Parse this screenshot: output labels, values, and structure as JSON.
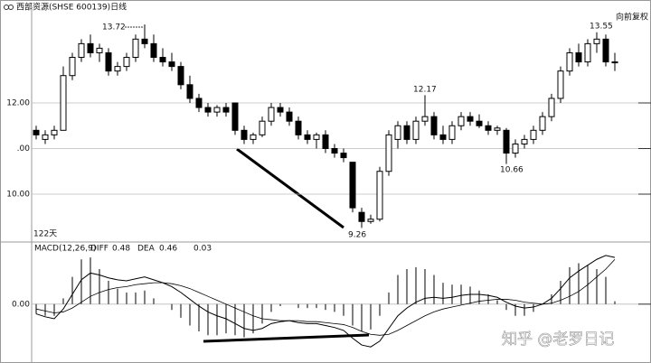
{
  "chart_data": [
    {
      "type": "candlestick",
      "title": "西部资源(SHSE 600139)日线",
      "subtitle": "向前复权",
      "period_label": "122天",
      "color": "#000000",
      "ylim": [
        8.95,
        14.06
      ],
      "yticks": [
        {
          "value": 11,
          "label": ".00"
        },
        {
          "value": 12,
          "label": "12.00"
        },
        {
          "value": 10,
          "label": "10.00"
        }
      ],
      "annotations": [
        "13.72",
        "13.55",
        "12.17",
        "10.66",
        "9.26"
      ],
      "open": [
        11.4,
        11.2,
        11.3,
        11.4,
        12.6,
        13.0,
        13.3,
        13.1,
        13.1,
        12.7,
        12.8,
        13.0,
        13.4,
        13.3,
        13.0,
        12.9,
        12.8,
        12.4,
        12.1,
        11.9,
        11.8,
        11.9,
        12.0,
        11.4,
        11.2,
        11.3,
        11.6,
        11.9,
        11.8,
        11.6,
        11.3,
        11.2,
        11.3,
        11.0,
        10.9,
        10.7,
        9.6,
        9.4,
        9.45,
        10.5,
        11.2,
        11.5,
        11.2,
        11.6,
        11.7,
        11.3,
        11.2,
        11.5,
        11.7,
        11.6,
        11.5,
        11.4,
        11.4,
        10.9,
        11.1,
        11.2,
        11.4,
        11.7,
        12.1,
        12.7,
        13.1,
        12.9,
        13.3,
        13.4,
        12.9
      ],
      "high": [
        11.5,
        11.4,
        11.5,
        12.8,
        13.1,
        13.4,
        13.5,
        13.3,
        13.2,
        12.9,
        13.1,
        13.5,
        13.72,
        13.5,
        13.2,
        13.1,
        12.9,
        12.6,
        12.2,
        12.0,
        11.95,
        12.0,
        12.0,
        11.5,
        11.35,
        11.7,
        12.0,
        12.0,
        11.9,
        11.7,
        11.4,
        11.35,
        11.4,
        11.1,
        11.0,
        10.7,
        9.7,
        9.55,
        10.6,
        11.4,
        11.6,
        11.6,
        11.7,
        12.17,
        11.8,
        11.5,
        11.6,
        11.8,
        11.8,
        11.75,
        11.6,
        11.5,
        11.45,
        11.2,
        11.3,
        11.5,
        11.8,
        12.2,
        12.8,
        13.2,
        13.3,
        13.4,
        13.55,
        13.5,
        13.1
      ],
      "low": [
        11.2,
        11.1,
        11.2,
        11.4,
        12.5,
        12.9,
        13.0,
        12.9,
        12.6,
        12.6,
        12.7,
        12.9,
        13.2,
        12.9,
        12.8,
        12.7,
        12.3,
        12.0,
        11.8,
        11.7,
        11.7,
        11.7,
        11.3,
        11.1,
        11.1,
        11.25,
        11.5,
        11.7,
        11.5,
        11.2,
        11.1,
        11.0,
        10.9,
        10.8,
        10.7,
        9.6,
        9.26,
        9.35,
        9.4,
        10.4,
        11.0,
        11.1,
        11.1,
        11.5,
        11.2,
        11.1,
        11.1,
        11.4,
        11.5,
        11.45,
        11.3,
        11.3,
        10.66,
        10.8,
        11.0,
        11.1,
        11.3,
        11.6,
        12.0,
        12.6,
        12.8,
        12.8,
        13.1,
        12.8,
        12.7
      ],
      "close": [
        11.3,
        11.3,
        11.4,
        12.6,
        13.0,
        13.3,
        13.1,
        13.2,
        12.7,
        12.8,
        13.0,
        13.4,
        13.3,
        13.0,
        12.9,
        12.8,
        12.4,
        12.1,
        11.9,
        11.8,
        11.9,
        11.8,
        11.4,
        11.2,
        11.3,
        11.6,
        11.9,
        11.8,
        11.6,
        11.3,
        11.2,
        11.3,
        11.0,
        10.9,
        10.8,
        9.7,
        9.4,
        9.45,
        10.5,
        11.3,
        11.5,
        11.2,
        11.6,
        11.7,
        11.3,
        11.2,
        11.5,
        11.7,
        11.6,
        11.5,
        11.4,
        11.45,
        10.9,
        11.1,
        11.2,
        11.4,
        11.7,
        12.1,
        12.7,
        13.1,
        12.9,
        13.3,
        13.4,
        12.9,
        12.9
      ]
    },
    {
      "type": "macd",
      "title": "MACD(12,26,9)",
      "ylim": [
        -0.54,
        0.62
      ],
      "yticks": [
        {
          "value": 0,
          "label": "0.00"
        }
      ],
      "series": [
        {
          "name": "DIFF",
          "color": "#000000",
          "values": [
            -0.1,
            -0.13,
            -0.15,
            -0.05,
            0.1,
            0.25,
            0.32,
            0.3,
            0.27,
            0.25,
            0.24,
            0.26,
            0.28,
            0.25,
            0.22,
            0.18,
            0.12,
            0.05,
            -0.02,
            -0.08,
            -0.12,
            -0.15,
            -0.2,
            -0.25,
            -0.27,
            -0.25,
            -0.2,
            -0.18,
            -0.17,
            -0.19,
            -0.2,
            -0.2,
            -0.22,
            -0.24,
            -0.27,
            -0.35,
            -0.42,
            -0.44,
            -0.38,
            -0.25,
            -0.12,
            -0.04,
            0.02,
            0.06,
            0.07,
            0.06,
            0.07,
            0.09,
            0.1,
            0.1,
            0.09,
            0.07,
            0.02,
            -0.02,
            -0.04,
            -0.03,
            0.0,
            0.06,
            0.16,
            0.27,
            0.34,
            0.4,
            0.46,
            0.5,
            0.48
          ]
        },
        {
          "name": "DEA",
          "color": "#000000",
          "values": [
            -0.05,
            -0.07,
            -0.09,
            -0.08,
            -0.04,
            0.02,
            0.08,
            0.12,
            0.15,
            0.17,
            0.18,
            0.2,
            0.21,
            0.22,
            0.22,
            0.21,
            0.19,
            0.16,
            0.12,
            0.08,
            0.04,
            0.0,
            -0.04,
            -0.08,
            -0.12,
            -0.15,
            -0.16,
            -0.17,
            -0.17,
            -0.17,
            -0.18,
            -0.18,
            -0.19,
            -0.2,
            -0.21,
            -0.24,
            -0.28,
            -0.31,
            -0.32,
            -0.31,
            -0.27,
            -0.22,
            -0.17,
            -0.12,
            -0.08,
            -0.05,
            -0.03,
            -0.01,
            0.01,
            0.03,
            0.04,
            0.05,
            0.05,
            0.04,
            0.02,
            0.01,
            0.0,
            0.01,
            0.04,
            0.08,
            0.13,
            0.2,
            0.28,
            0.36,
            0.46
          ]
        },
        {
          "color": "#000000",
          "values": [
            -0.1,
            -0.12,
            -0.12,
            0.06,
            0.28,
            0.46,
            0.48,
            0.36,
            0.24,
            0.16,
            0.12,
            0.12,
            0.14,
            0.06,
            0.0,
            -0.06,
            -0.14,
            -0.22,
            -0.28,
            -0.32,
            -0.32,
            -0.3,
            -0.32,
            -0.34,
            -0.3,
            -0.2,
            -0.08,
            -0.02,
            0.0,
            -0.04,
            -0.04,
            -0.04,
            -0.06,
            -0.08,
            -0.12,
            -0.22,
            -0.28,
            -0.26,
            -0.12,
            0.12,
            0.3,
            0.36,
            0.38,
            0.36,
            0.3,
            0.22,
            0.2,
            0.2,
            0.18,
            0.14,
            0.1,
            0.04,
            -0.06,
            -0.12,
            -0.12,
            -0.08,
            0.0,
            0.1,
            0.24,
            0.38,
            0.42,
            0.4,
            0.36,
            0.28,
            0.03
          ]
        }
      ]
    }
  ],
  "watermark": "知乎 @老罗日记"
}
